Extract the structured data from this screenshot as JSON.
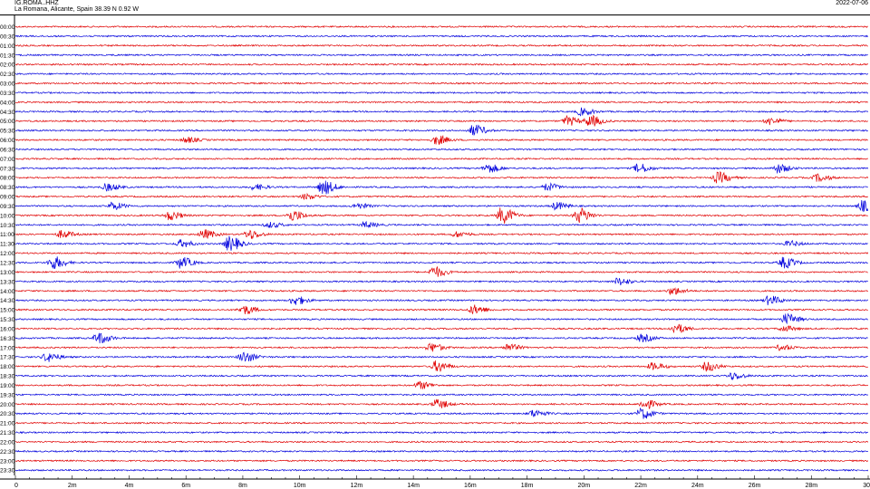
{
  "header": {
    "station": "IG.ROMA..HHZ",
    "location": "La Romana, Alicante, Spain  38.39 N 0.92 W",
    "date": "2022-07-06"
  },
  "chart_data": {
    "type": "line",
    "title": "",
    "row_labels": [
      "00:00",
      "00:30",
      "01:00",
      "01:30",
      "02:00",
      "02:30",
      "03:00",
      "03:30",
      "04:00",
      "04:30",
      "05:00",
      "05:30",
      "06:00",
      "06:30",
      "07:00",
      "07:30",
      "08:00",
      "08:30",
      "09:00",
      "09:30",
      "10:00",
      "10:30",
      "11:00",
      "11:30",
      "12:00",
      "12:30",
      "13:00",
      "13:30",
      "14:00",
      "14:30",
      "15:00",
      "15:30",
      "16:00",
      "16:30",
      "17:00",
      "17:30",
      "18:00",
      "18:30",
      "19:00",
      "19:30",
      "20:00",
      "20:30",
      "21:00",
      "21:30",
      "22:00",
      "22:30",
      "23:00",
      "23:30"
    ],
    "x_ticks": [
      "0",
      "2m",
      "4m",
      "6m",
      "8m",
      "10m",
      "12m",
      "14m",
      "16m",
      "18m",
      "20m",
      "22m",
      "24m",
      "26m",
      "28m",
      "30"
    ],
    "xlim": [
      0,
      30
    ],
    "colors": {
      "even_rows": "#e00000",
      "odd_rows": "#0000dd"
    },
    "events": [
      {
        "row": 9,
        "min": 19.9,
        "amp": 4
      },
      {
        "row": 10,
        "min": 19.4,
        "amp": 5
      },
      {
        "row": 10,
        "min": 20.2,
        "amp": 6
      },
      {
        "row": 10,
        "min": 26.5,
        "amp": 4
      },
      {
        "row": 11,
        "min": 16.1,
        "amp": 6
      },
      {
        "row": 12,
        "min": 14.8,
        "amp": 5
      },
      {
        "row": 12,
        "min": 6.0,
        "amp": 3
      },
      {
        "row": 15,
        "min": 16.6,
        "amp": 5
      },
      {
        "row": 15,
        "min": 21.9,
        "amp": 5
      },
      {
        "row": 15,
        "min": 26.8,
        "amp": 5
      },
      {
        "row": 16,
        "min": 24.7,
        "amp": 6
      },
      {
        "row": 16,
        "min": 28.2,
        "amp": 4
      },
      {
        "row": 17,
        "min": 3.2,
        "amp": 4
      },
      {
        "row": 17,
        "min": 8.4,
        "amp": 3
      },
      {
        "row": 17,
        "min": 10.8,
        "amp": 8
      },
      {
        "row": 17,
        "min": 18.7,
        "amp": 4
      },
      {
        "row": 18,
        "min": 10.2,
        "amp": 3
      },
      {
        "row": 19,
        "min": 3.4,
        "amp": 4
      },
      {
        "row": 19,
        "min": 12.0,
        "amp": 3
      },
      {
        "row": 19,
        "min": 19.0,
        "amp": 4
      },
      {
        "row": 19,
        "min": 29.8,
        "amp": 6
      },
      {
        "row": 20,
        "min": 5.4,
        "amp": 5
      },
      {
        "row": 20,
        "min": 9.7,
        "amp": 6
      },
      {
        "row": 20,
        "min": 17.1,
        "amp": 9
      },
      {
        "row": 20,
        "min": 19.8,
        "amp": 8
      },
      {
        "row": 21,
        "min": 8.9,
        "amp": 3
      },
      {
        "row": 21,
        "min": 12.3,
        "amp": 3
      },
      {
        "row": 22,
        "min": 1.6,
        "amp": 4
      },
      {
        "row": 22,
        "min": 6.6,
        "amp": 5
      },
      {
        "row": 22,
        "min": 8.2,
        "amp": 5
      },
      {
        "row": 22,
        "min": 15.5,
        "amp": 3
      },
      {
        "row": 23,
        "min": 5.8,
        "amp": 4
      },
      {
        "row": 23,
        "min": 7.5,
        "amp": 8
      },
      {
        "row": 23,
        "min": 27.2,
        "amp": 3
      },
      {
        "row": 25,
        "min": 5.8,
        "amp": 6
      },
      {
        "row": 25,
        "min": 1.3,
        "amp": 7
      },
      {
        "row": 25,
        "min": 27.0,
        "amp": 6
      },
      {
        "row": 26,
        "min": 14.7,
        "amp": 6
      },
      {
        "row": 27,
        "min": 21.2,
        "amp": 4
      },
      {
        "row": 28,
        "min": 23.1,
        "amp": 4
      },
      {
        "row": 29,
        "min": 9.8,
        "amp": 5
      },
      {
        "row": 29,
        "min": 26.5,
        "amp": 5
      },
      {
        "row": 30,
        "min": 8.0,
        "amp": 5
      },
      {
        "row": 30,
        "min": 16.1,
        "amp": 5
      },
      {
        "row": 31,
        "min": 27.1,
        "amp": 6
      },
      {
        "row": 32,
        "min": 23.2,
        "amp": 5
      },
      {
        "row": 32,
        "min": 27.0,
        "amp": 3
      },
      {
        "row": 33,
        "min": 2.9,
        "amp": 6
      },
      {
        "row": 33,
        "min": 22.0,
        "amp": 4
      },
      {
        "row": 34,
        "min": 14.6,
        "amp": 5
      },
      {
        "row": 34,
        "min": 17.3,
        "amp": 4
      },
      {
        "row": 34,
        "min": 26.9,
        "amp": 3
      },
      {
        "row": 35,
        "min": 1.1,
        "amp": 5
      },
      {
        "row": 35,
        "min": 8.0,
        "amp": 6
      },
      {
        "row": 36,
        "min": 14.8,
        "amp": 6
      },
      {
        "row": 36,
        "min": 22.4,
        "amp": 4
      },
      {
        "row": 36,
        "min": 24.3,
        "amp": 5
      },
      {
        "row": 37,
        "min": 25.2,
        "amp": 4
      },
      {
        "row": 38,
        "min": 14.2,
        "amp": 4
      },
      {
        "row": 40,
        "min": 14.8,
        "amp": 5
      },
      {
        "row": 40,
        "min": 22.1,
        "amp": 5
      },
      {
        "row": 41,
        "min": 18.2,
        "amp": 4
      },
      {
        "row": 41,
        "min": 22.0,
        "amp": 6
      }
    ]
  }
}
